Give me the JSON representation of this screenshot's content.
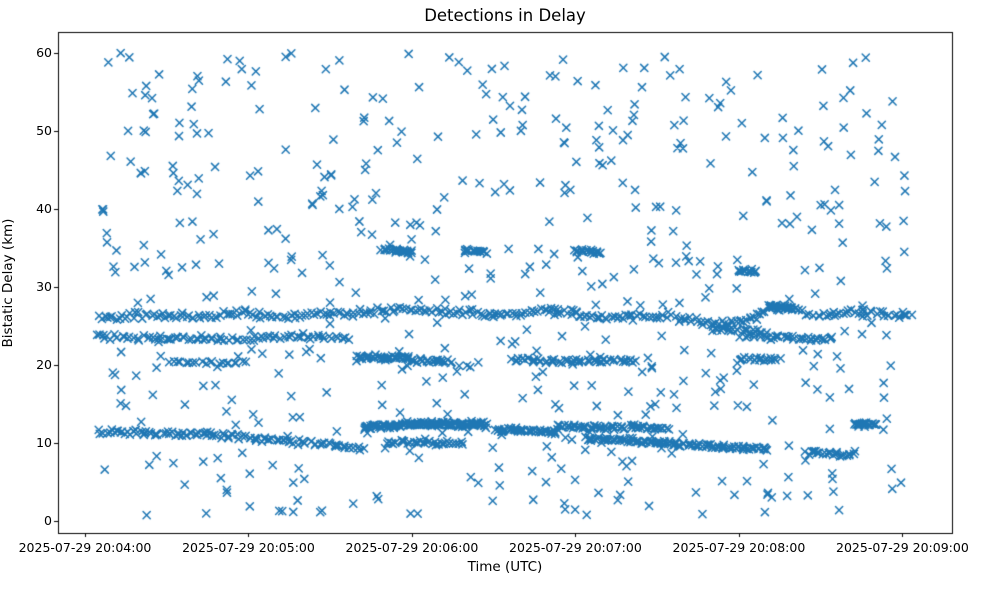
{
  "chart_data": {
    "type": "scatter",
    "title": "Detections in Delay",
    "xlabel": "Time (UTC)",
    "ylabel": "Bistatic Delay (km)",
    "legend": null,
    "grid": false,
    "marker": {
      "style": "x",
      "color": "#1f77b4",
      "half_size": 3.6,
      "line_width": 1.5
    },
    "axes_color": "#000000",
    "x_axis": {
      "unit": "seconds after 2025-07-29 20:04:00 UTC",
      "view_t0": -9.9,
      "view_t1": 318.2,
      "ticks": [
        {
          "t": 0,
          "label": "2025-07-29 20:04:00"
        },
        {
          "t": 60,
          "label": "2025-07-29 20:05:00"
        },
        {
          "t": 120,
          "label": "2025-07-29 20:06:00"
        },
        {
          "t": 180,
          "label": "2025-07-29 20:07:00"
        },
        {
          "t": 240,
          "label": "2025-07-29 20:08:00"
        },
        {
          "t": 300,
          "label": "2025-07-29 20:09:00"
        }
      ]
    },
    "y_axis": {
      "unit": "km",
      "view_d0": -1.54,
      "view_d1": 62.74,
      "ticks": [
        {
          "d": 0,
          "label": "0"
        },
        {
          "d": 10,
          "label": "10"
        },
        {
          "d": 20,
          "label": "20"
        },
        {
          "d": 30,
          "label": "30"
        },
        {
          "d": 40,
          "label": "40"
        },
        {
          "d": 50,
          "label": "50"
        },
        {
          "d": 60,
          "label": "60"
        }
      ]
    },
    "data_domain": {
      "t0": 5,
      "t1": 303
    },
    "seed": 42,
    "noise": {
      "count": 560,
      "d_min": 0.7,
      "d_max": 60.2
    },
    "tracks": [
      {
        "name": "main-26km",
        "n": 280,
        "sigma": 0.22,
        "x_jitter": 0.004,
        "path": [
          [
            0.0,
            26.15
          ],
          [
            0.05,
            26.45
          ],
          [
            0.09,
            26.2
          ],
          [
            0.14,
            26.35
          ],
          [
            0.17,
            26.65
          ],
          [
            0.22,
            26.3
          ],
          [
            0.27,
            26.4
          ],
          [
            0.31,
            26.65
          ],
          [
            0.365,
            27.15
          ],
          [
            0.41,
            26.95
          ],
          [
            0.46,
            26.6
          ],
          [
            0.5,
            26.4
          ],
          [
            0.545,
            26.9
          ],
          [
            0.585,
            26.85
          ],
          [
            0.615,
            26.0
          ],
          [
            0.66,
            26.3
          ],
          [
            0.7,
            26.3
          ],
          [
            0.75,
            25.5
          ],
          [
            0.775,
            25.3
          ],
          [
            0.805,
            26.1
          ],
          [
            0.83,
            27.4
          ],
          [
            0.85,
            27.45
          ],
          [
            0.87,
            26.5
          ],
          [
            0.895,
            26.35
          ],
          [
            0.93,
            26.85
          ],
          [
            0.96,
            26.55
          ],
          [
            1.0,
            26.35
          ]
        ]
      },
      {
        "name": "left-23p5km",
        "n": 80,
        "sigma": 0.18,
        "path": [
          [
            0.0,
            23.75
          ],
          [
            0.07,
            23.5
          ],
          [
            0.12,
            23.35
          ],
          [
            0.18,
            23.45
          ],
          [
            0.24,
            23.6
          ],
          [
            0.31,
            23.55
          ]
        ]
      },
      {
        "name": "seg-20p4-left",
        "n": 20,
        "sigma": 0.12,
        "path": [
          [
            0.088,
            20.4
          ],
          [
            0.18,
            20.3
          ]
        ]
      },
      {
        "name": "seg-21-midleft",
        "n": 46,
        "sigma": 0.15,
        "path": [
          [
            0.318,
            21.05
          ],
          [
            0.383,
            20.9
          ]
        ]
      },
      {
        "name": "seg-20p5-midleft",
        "n": 24,
        "sigma": 0.12,
        "path": [
          [
            0.385,
            20.6
          ],
          [
            0.435,
            20.5
          ]
        ]
      },
      {
        "name": "seg-20p6-mid",
        "n": 55,
        "sigma": 0.15,
        "path": [
          [
            0.51,
            20.75
          ],
          [
            0.58,
            20.5
          ],
          [
            0.662,
            20.55
          ]
        ]
      },
      {
        "name": "seg-20p8-right",
        "n": 20,
        "sigma": 0.12,
        "path": [
          [
            0.79,
            20.9
          ],
          [
            0.838,
            20.65
          ]
        ]
      },
      {
        "name": "seg-34p7-a",
        "n": 24,
        "sigma": 0.12,
        "path": [
          [
            0.349,
            34.75
          ],
          [
            0.385,
            34.6
          ]
        ]
      },
      {
        "name": "seg-34p6-b",
        "n": 16,
        "sigma": 0.12,
        "path": [
          [
            0.449,
            34.65
          ],
          [
            0.476,
            34.6
          ]
        ]
      },
      {
        "name": "seg-34p6-c",
        "n": 20,
        "sigma": 0.12,
        "path": [
          [
            0.587,
            34.75
          ],
          [
            0.617,
            34.5
          ]
        ]
      },
      {
        "name": "seg-32",
        "n": 15,
        "sigma": 0.12,
        "path": [
          [
            0.789,
            32.15
          ],
          [
            0.812,
            32.0
          ]
        ]
      },
      {
        "name": "seg-27p5-right",
        "n": 20,
        "sigma": 0.14,
        "path": [
          [
            0.826,
            27.55
          ],
          [
            0.853,
            27.3
          ]
        ]
      },
      {
        "name": "seg-24p5-right",
        "n": 24,
        "sigma": 0.15,
        "path": [
          [
            0.755,
            24.7
          ],
          [
            0.82,
            24.25
          ]
        ]
      },
      {
        "name": "seg-23p5-right",
        "n": 36,
        "sigma": 0.15,
        "path": [
          [
            0.8,
            23.8
          ],
          [
            0.86,
            23.45
          ],
          [
            0.905,
            23.35
          ]
        ]
      },
      {
        "name": "low-descend-left",
        "n": 110,
        "sigma": 0.18,
        "path": [
          [
            0.0,
            11.45
          ],
          [
            0.06,
            11.3
          ],
          [
            0.1,
            11.1
          ],
          [
            0.13,
            11.15
          ],
          [
            0.17,
            10.85
          ],
          [
            0.21,
            10.5
          ],
          [
            0.245,
            10.15
          ],
          [
            0.27,
            9.9
          ],
          [
            0.325,
            9.3
          ]
        ]
      },
      {
        "name": "seg-10-mid",
        "n": 36,
        "sigma": 0.15,
        "path": [
          [
            0.355,
            10.15
          ],
          [
            0.447,
            9.95
          ]
        ]
      },
      {
        "name": "blob-12p3",
        "n": 150,
        "sigma": 0.16,
        "x_jitter": 0.003,
        "path": [
          [
            0.327,
            12.05
          ],
          [
            0.36,
            12.25
          ],
          [
            0.4,
            12.45
          ],
          [
            0.44,
            12.4
          ],
          [
            0.465,
            12.5
          ],
          [
            0.478,
            12.3
          ]
        ]
      },
      {
        "name": "seg-11p5-mid",
        "n": 45,
        "sigma": 0.15,
        "path": [
          [
            0.49,
            11.75
          ],
          [
            0.53,
            11.55
          ],
          [
            0.565,
            11.4
          ]
        ]
      },
      {
        "name": "seg-12p1-mid",
        "n": 40,
        "sigma": 0.14,
        "path": [
          [
            0.565,
            12.15
          ],
          [
            0.61,
            12.0
          ],
          [
            0.648,
            11.95
          ]
        ]
      },
      {
        "name": "seg-12-mid2",
        "n": 20,
        "sigma": 0.14,
        "path": [
          [
            0.655,
            12.05
          ],
          [
            0.7,
            11.9
          ]
        ]
      },
      {
        "name": "low-descend-right",
        "n": 115,
        "sigma": 0.15,
        "path": [
          [
            0.6,
            10.55
          ],
          [
            0.65,
            10.3
          ],
          [
            0.7,
            10.0
          ],
          [
            0.75,
            9.65
          ],
          [
            0.79,
            9.4
          ],
          [
            0.825,
            9.15
          ]
        ]
      },
      {
        "name": "seg-8p6-right",
        "n": 24,
        "sigma": 0.13,
        "path": [
          [
            0.872,
            8.75
          ],
          [
            0.928,
            8.45
          ]
        ]
      },
      {
        "name": "blob-12p4-right",
        "n": 20,
        "sigma": 0.13,
        "path": [
          [
            0.93,
            12.45
          ],
          [
            0.957,
            12.4
          ]
        ]
      }
    ]
  }
}
